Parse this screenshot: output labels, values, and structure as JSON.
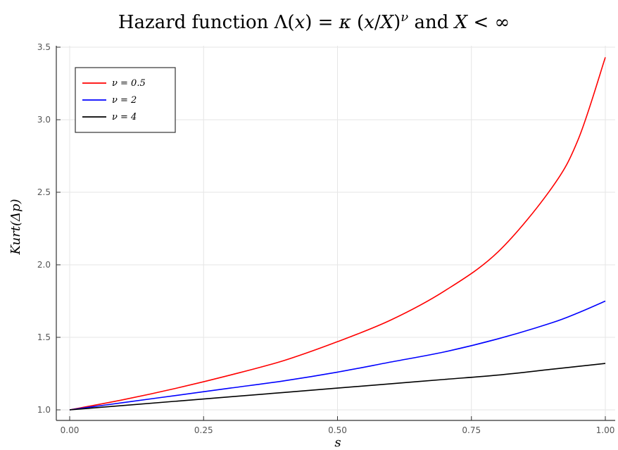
{
  "chart_data": {
    "type": "line",
    "title": "Hazard function Λ(x) = κ (x/X)^ν and X < ∞",
    "xlabel": "s",
    "ylabel": "Kurt(Δp)",
    "xlim": [
      0.0,
      1.0
    ],
    "ylim": [
      1.0,
      3.5
    ],
    "xticks": [
      "0.00",
      "0.25",
      "0.50",
      "0.75",
      "1.00"
    ],
    "yticks": [
      "1.0",
      "1.5",
      "2.0",
      "2.5",
      "3.0",
      "3.5"
    ],
    "grid": true,
    "legend_position": "top-left",
    "x": [
      0.0,
      0.1,
      0.2,
      0.3,
      0.4,
      0.5,
      0.6,
      0.7,
      0.8,
      0.9,
      0.95,
      1.0
    ],
    "series": [
      {
        "name": "ν = 0.5",
        "color": "#ff0000",
        "values": [
          1.0,
          1.07,
          1.15,
          1.24,
          1.34,
          1.47,
          1.62,
          1.82,
          2.09,
          2.53,
          2.87,
          3.43
        ]
      },
      {
        "name": "ν = 2",
        "color": "#0000ff",
        "values": [
          1.0,
          1.05,
          1.1,
          1.15,
          1.2,
          1.26,
          1.33,
          1.4,
          1.49,
          1.6,
          1.67,
          1.75
        ]
      },
      {
        "name": "ν = 4",
        "color": "#000000",
        "values": [
          1.0,
          1.03,
          1.06,
          1.09,
          1.12,
          1.15,
          1.18,
          1.21,
          1.24,
          1.28,
          1.3,
          1.32
        ]
      }
    ]
  }
}
